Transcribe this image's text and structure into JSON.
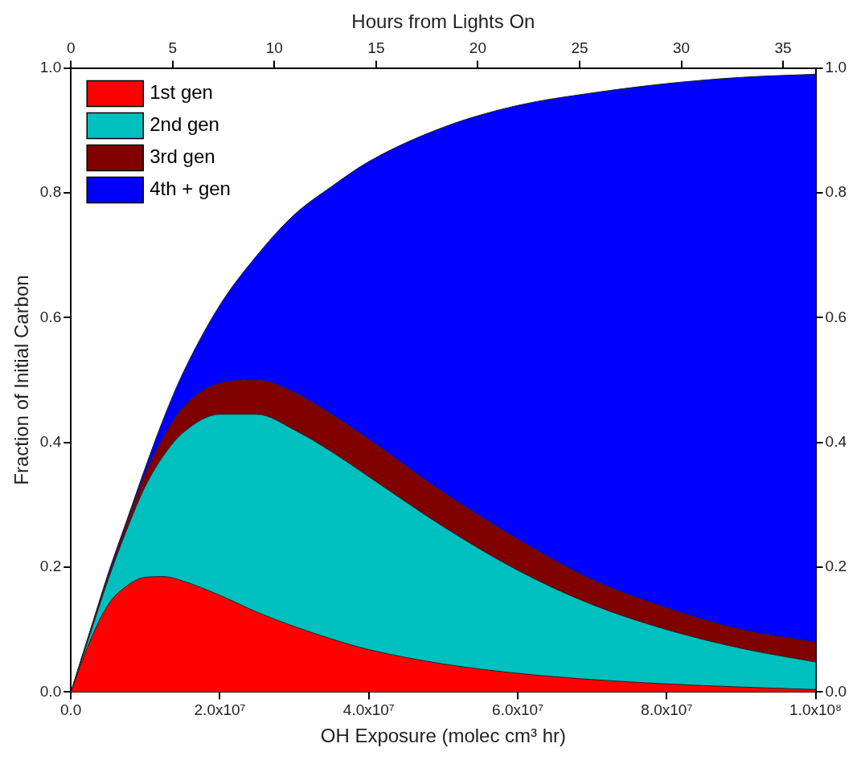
{
  "chart_data": {
    "type": "area",
    "stacked": true,
    "xlabel": "OH Exposure (molec cm³ hr)",
    "ylabel": "Fraction of Initial Carbon",
    "x2label": "Hours from Lights On",
    "x": [
      0,
      2500000,
      5000000,
      7500000,
      10000000,
      12500000,
      15000000,
      20000000,
      25000000,
      30000000,
      35000000,
      40000000,
      50000000,
      60000000,
      70000000,
      80000000,
      90000000,
      100000000
    ],
    "series": [
      {
        "name": "1st gen",
        "color": "#ff0000",
        "values": [
          0,
          0.08,
          0.14,
          0.17,
          0.184,
          0.185,
          0.178,
          0.155,
          0.128,
          0.105,
          0.085,
          0.068,
          0.045,
          0.03,
          0.02,
          0.013,
          0.008,
          0.004
        ]
      },
      {
        "name": "2nd gen",
        "color": "#00bfbf",
        "values": [
          0,
          0.01,
          0.04,
          0.09,
          0.146,
          0.195,
          0.237,
          0.29,
          0.317,
          0.315,
          0.3,
          0.277,
          0.22,
          0.165,
          0.12,
          0.087,
          0.062,
          0.044
        ]
      },
      {
        "name": "3rd gen",
        "color": "#800000",
        "values": [
          0,
          0.005,
          0.005,
          0.01,
          0.02,
          0.03,
          0.04,
          0.05,
          0.055,
          0.06,
          0.06,
          0.06,
          0.055,
          0.05,
          0.04,
          0.035,
          0.03,
          0.032
        ]
      },
      {
        "name": "4th + gen",
        "color": "#0000ff",
        "values": [
          0,
          0,
          0.005,
          0.005,
          0.01,
          0.03,
          0.055,
          0.125,
          0.2,
          0.285,
          0.365,
          0.445,
          0.585,
          0.695,
          0.78,
          0.84,
          0.885,
          0.91
        ]
      }
    ],
    "xlim": [
      0,
      100000000
    ],
    "xticks": [
      {
        "value": 0,
        "label": "0.0"
      },
      {
        "value": 20000000,
        "label": "2.0x10⁷"
      },
      {
        "value": 40000000,
        "label": "4.0x10⁷"
      },
      {
        "value": 60000000,
        "label": "6.0x10⁷"
      },
      {
        "value": 80000000,
        "label": "8.0x10⁷"
      },
      {
        "value": 100000000,
        "label": "1.0x10⁸"
      }
    ],
    "x2lim": [
      0,
      36.6
    ],
    "x2ticks": [
      0,
      5,
      10,
      15,
      20,
      25,
      30,
      35
    ],
    "ylim": [
      0,
      1
    ],
    "yticks": [
      {
        "value": 0,
        "label": "0.0"
      },
      {
        "value": 0.2,
        "label": "0.2"
      },
      {
        "value": 0.4,
        "label": "0.4"
      },
      {
        "value": 0.6,
        "label": "0.6"
      },
      {
        "value": 0.8,
        "label": "0.8"
      },
      {
        "value": 1,
        "label": "1.0"
      }
    ],
    "y2lim": [
      0,
      1
    ],
    "y2ticks": [
      {
        "value": 0,
        "label": "0.0"
      },
      {
        "value": 0.2,
        "label": "0.2"
      },
      {
        "value": 0.4,
        "label": "0.4"
      },
      {
        "value": 0.6,
        "label": "0.6"
      },
      {
        "value": 0.8,
        "label": "0.8"
      },
      {
        "value": 1,
        "label": "1.0"
      }
    ],
    "grid": false,
    "legend": "top left"
  }
}
